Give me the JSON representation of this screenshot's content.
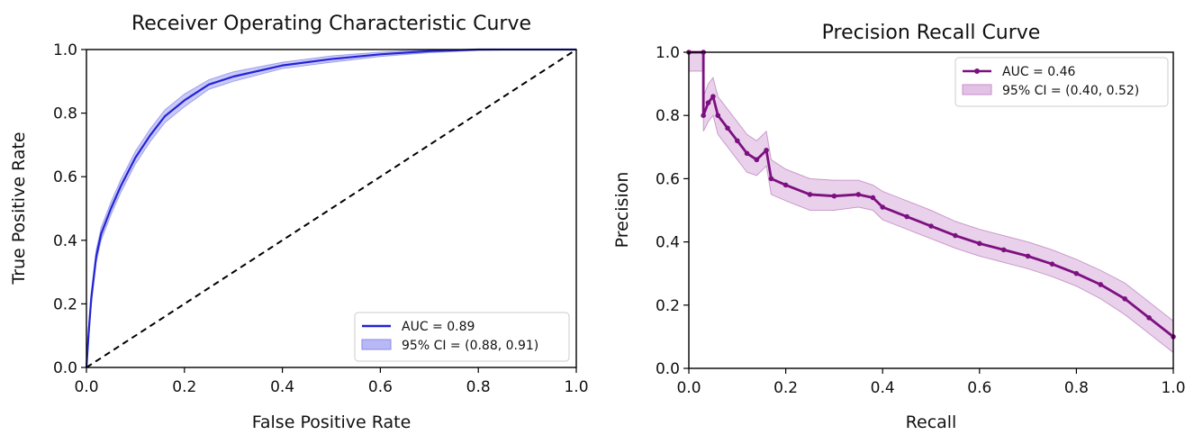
{
  "chart_data": [
    {
      "type": "line",
      "title": "Receiver Operating Characteristic Curve",
      "xlabel": "False Positive Rate",
      "ylabel": "True Positive Rate",
      "xlim": [
        0,
        1
      ],
      "ylim": [
        0,
        1
      ],
      "xticks": [
        "0.0",
        "0.2",
        "0.4",
        "0.6",
        "0.8",
        "1.0"
      ],
      "yticks": [
        "0.0",
        "0.2",
        "0.4",
        "0.6",
        "0.8",
        "1.0"
      ],
      "grid": false,
      "legend_position": "lower-right",
      "legend": [
        {
          "label": "AUC = 0.89",
          "kind": "line"
        },
        {
          "label": "95% CI = (0.88, 0.91)",
          "kind": "band"
        }
      ],
      "line_color": "#2424d6",
      "band_color": "#b8b8f5",
      "x": [
        0.0,
        0.005,
        0.01,
        0.02,
        0.03,
        0.05,
        0.07,
        0.1,
        0.13,
        0.16,
        0.2,
        0.25,
        0.3,
        0.4,
        0.5,
        0.6,
        0.7,
        0.8,
        0.9,
        1.0
      ],
      "y": [
        0.0,
        0.12,
        0.22,
        0.35,
        0.42,
        0.5,
        0.57,
        0.66,
        0.73,
        0.79,
        0.84,
        0.89,
        0.915,
        0.95,
        0.97,
        0.985,
        0.995,
        1.0,
        1.0,
        1.0
      ],
      "ci_lower": [
        0.0,
        0.1,
        0.2,
        0.33,
        0.4,
        0.48,
        0.55,
        0.64,
        0.71,
        0.77,
        0.82,
        0.875,
        0.9,
        0.94,
        0.96,
        0.978,
        0.99,
        0.997,
        1.0,
        1.0
      ],
      "ci_upper": [
        0.0,
        0.14,
        0.24,
        0.37,
        0.44,
        0.52,
        0.59,
        0.68,
        0.75,
        0.81,
        0.86,
        0.905,
        0.93,
        0.96,
        0.98,
        0.992,
        1.0,
        1.0,
        1.0,
        1.0
      ],
      "reference_line": {
        "x": [
          0,
          1
        ],
        "y": [
          0,
          1
        ],
        "style": "dashed",
        "color": "#000000"
      }
    },
    {
      "type": "line",
      "title": "Precision Recall Curve",
      "xlabel": "Recall",
      "ylabel": "Precision",
      "xlim": [
        0,
        1
      ],
      "ylim": [
        0,
        1
      ],
      "xticks": [
        "0.0",
        "0.2",
        "0.4",
        "0.6",
        "0.8",
        "1.0"
      ],
      "yticks": [
        "0.0",
        "0.2",
        "0.4",
        "0.6",
        "0.8",
        "1.0"
      ],
      "grid": false,
      "legend_position": "top-right",
      "legend": [
        {
          "label": "AUC = 0.46",
          "kind": "line-marker"
        },
        {
          "label": "95% CI = (0.40, 0.52)",
          "kind": "band"
        }
      ],
      "line_color": "#7d1080",
      "band_color": "#e2c2e4",
      "x": [
        0.0,
        0.03,
        0.03,
        0.04,
        0.05,
        0.06,
        0.08,
        0.1,
        0.12,
        0.14,
        0.16,
        0.17,
        0.2,
        0.25,
        0.3,
        0.35,
        0.38,
        0.4,
        0.45,
        0.5,
        0.55,
        0.6,
        0.65,
        0.7,
        0.75,
        0.8,
        0.85,
        0.9,
        0.95,
        1.0
      ],
      "y": [
        1.0,
        1.0,
        0.8,
        0.84,
        0.86,
        0.8,
        0.76,
        0.72,
        0.68,
        0.66,
        0.69,
        0.6,
        0.58,
        0.55,
        0.545,
        0.55,
        0.54,
        0.51,
        0.48,
        0.45,
        0.42,
        0.395,
        0.375,
        0.355,
        0.33,
        0.3,
        0.265,
        0.22,
        0.16,
        0.1
      ],
      "ci_lower": [
        0.94,
        0.94,
        0.75,
        0.78,
        0.8,
        0.74,
        0.7,
        0.66,
        0.62,
        0.61,
        0.64,
        0.55,
        0.53,
        0.5,
        0.5,
        0.51,
        0.5,
        0.47,
        0.44,
        0.41,
        0.38,
        0.355,
        0.335,
        0.315,
        0.29,
        0.26,
        0.22,
        0.17,
        0.11,
        0.05
      ],
      "ci_upper": [
        1.0,
        1.0,
        0.86,
        0.9,
        0.92,
        0.86,
        0.82,
        0.78,
        0.74,
        0.72,
        0.75,
        0.66,
        0.63,
        0.6,
        0.595,
        0.595,
        0.58,
        0.56,
        0.53,
        0.5,
        0.465,
        0.44,
        0.42,
        0.4,
        0.375,
        0.345,
        0.31,
        0.27,
        0.21,
        0.15
      ]
    }
  ]
}
